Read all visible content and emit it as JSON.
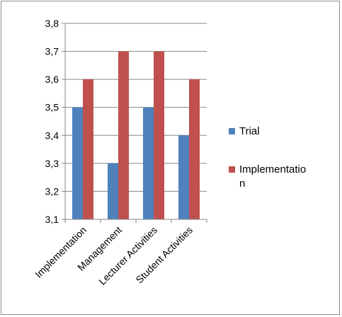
{
  "chart_data": {
    "type": "bar",
    "categories": [
      "Implementation",
      "Management",
      "Lecturer Activities",
      "Student Activities"
    ],
    "series": [
      {
        "name": "Trial",
        "values": [
          3.5,
          3.3,
          3.5,
          3.4
        ],
        "color": "#4f81bd"
      },
      {
        "name": "Implementation",
        "values": [
          3.6,
          3.7,
          3.7,
          3.6
        ],
        "color": "#c0504d"
      }
    ],
    "ylim": [
      3.1,
      3.8
    ],
    "yticks": [
      "3,1",
      "3,2",
      "3,3",
      "3,4",
      "3,5",
      "3,6",
      "3,7",
      "3,8"
    ],
    "legend": {
      "position": "right",
      "entries": [
        {
          "lines": [
            "Trial"
          ]
        },
        {
          "lines": [
            "Implementatio",
            "n"
          ]
        }
      ]
    },
    "grid": true,
    "title": "",
    "xlabel": "",
    "ylabel": ""
  }
}
